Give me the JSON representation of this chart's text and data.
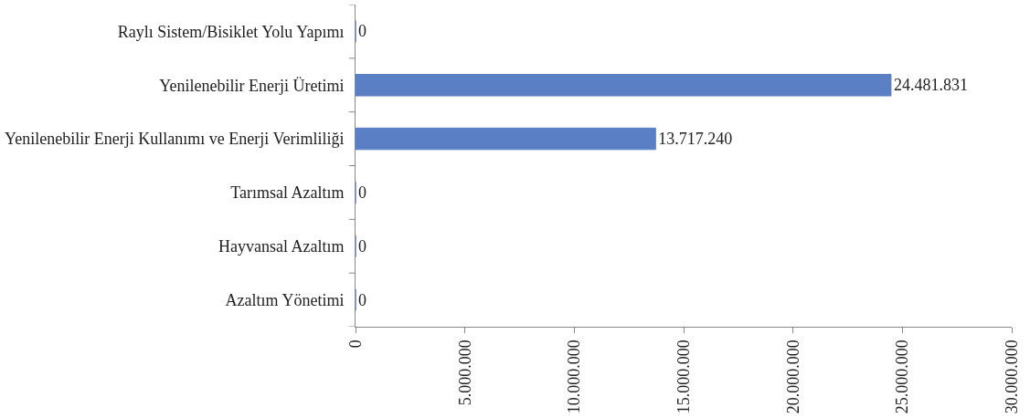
{
  "chart_data": {
    "type": "bar",
    "orientation": "horizontal",
    "categories": [
      "Raylı Sistem/Bisiklet Yolu Yapımı",
      "Yenilenebilir Enerji Üretimi",
      "Yenilenebilir Enerji Kullanımı ve Enerji Verimliliği",
      "Tarımsal Azaltım",
      "Hayvansal Azaltım",
      "Azaltım Yönetimi"
    ],
    "values": [
      0,
      24481831,
      13717240,
      0,
      0,
      0
    ],
    "value_labels": [
      "0",
      "24.481.831",
      "13.717.240",
      "0",
      "0",
      "0"
    ],
    "color": "#5b7fc4",
    "xlim": [
      0,
      30000000
    ],
    "xticks": [
      0,
      {
        "value": 5000000,
        "label": "5.000.000"
      },
      {
        "value": 10000000,
        "label": "10.000.000"
      },
      {
        "value": 15000000,
        "label": "15.000.000"
      },
      {
        "value": 20000000,
        "label": "20.000.000"
      },
      {
        "value": 25000000,
        "label": "25.000.000"
      },
      {
        "value": 30000000,
        "label": "30.000.000"
      }
    ],
    "legend": false
  }
}
